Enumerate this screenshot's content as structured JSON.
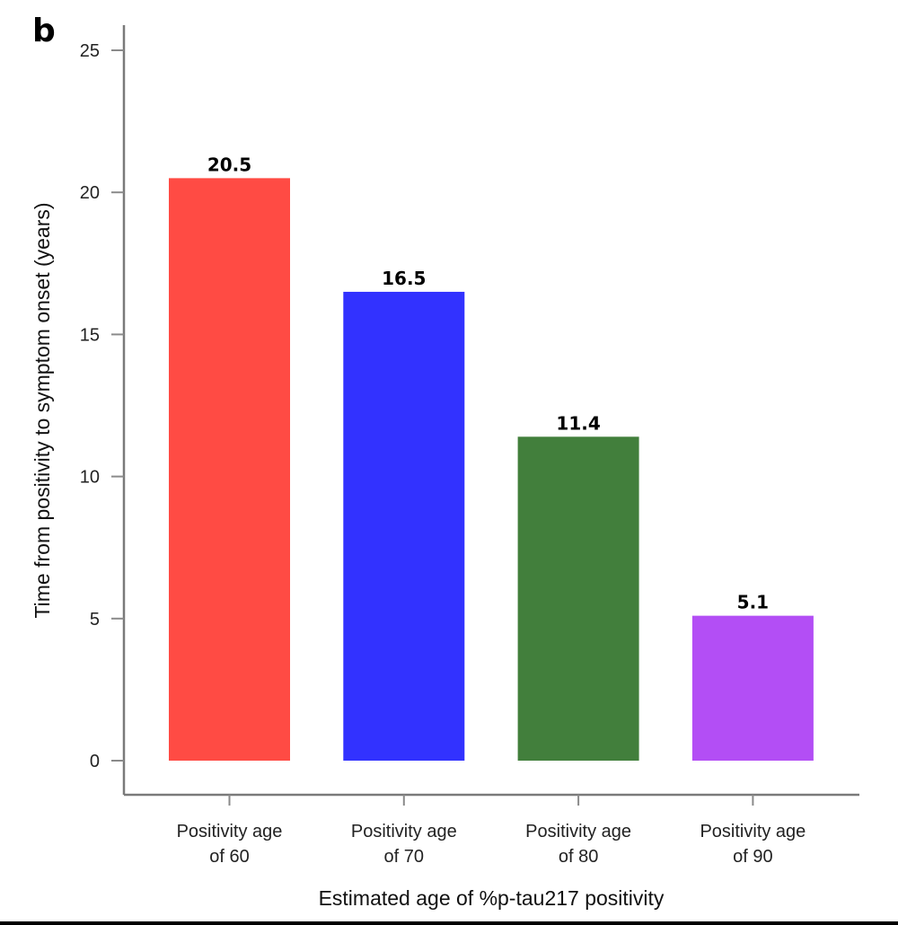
{
  "panel_label": "b",
  "chart_data": {
    "type": "bar",
    "title": "",
    "xlabel": "Estimated age of %p-tau217 positivity",
    "ylabel": "Time from positivity to symptom onset (years)",
    "ylim": [
      0,
      25
    ],
    "yticks": [
      0,
      5,
      10,
      15,
      20,
      25
    ],
    "grid": false,
    "legend": "none",
    "categories": [
      [
        "Positivity age",
        "of 60"
      ],
      [
        "Positivity age",
        "of 70"
      ],
      [
        "Positivity age",
        "of 80"
      ],
      [
        "Positivity age",
        "of 90"
      ]
    ],
    "values": [
      20.5,
      16.5,
      11.4,
      5.1
    ],
    "data_labels": [
      "20.5",
      "16.5",
      "11.4",
      "5.1"
    ],
    "colors": [
      "#ff4b44",
      "#3232ff",
      "#427f3c",
      "#b34ef5"
    ]
  }
}
